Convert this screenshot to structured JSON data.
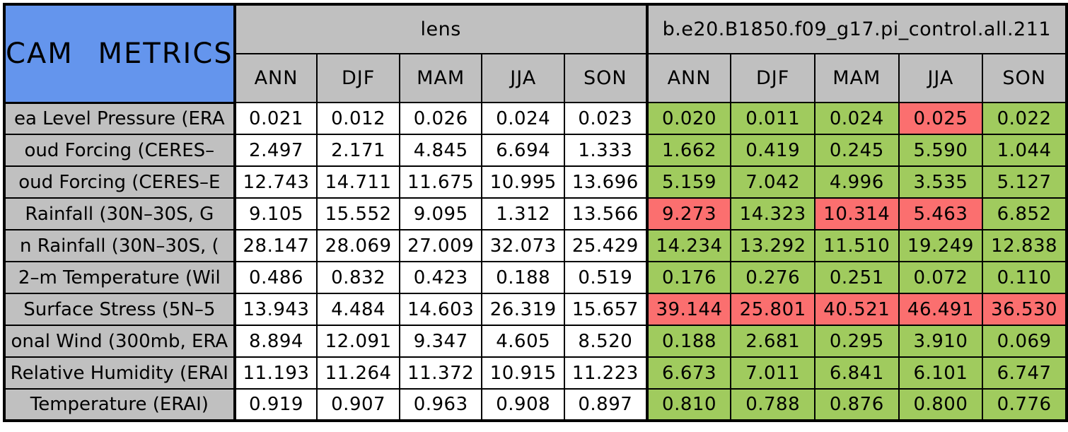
{
  "colors": {
    "blue": "#6495ED",
    "gray": "#C0C0C0",
    "green": "#A0CB5E",
    "red": "#FB6F6F",
    "white": "#FFFFFF",
    "border": "#000000",
    "text": "#000000"
  },
  "chart_data": {
    "type": "table",
    "title": "CAM METRICS",
    "groups": [
      {
        "key": "lens",
        "label": "lens",
        "columns": [
          "ANN",
          "DJF",
          "MAM",
          "JJA",
          "SON"
        ]
      },
      {
        "key": "control",
        "label": "b.e20.B1850.f09_g17.pi_control.all.211",
        "columns": [
          "ANN",
          "DJF",
          "MAM",
          "JJA",
          "SON"
        ]
      }
    ],
    "cell_color_legend": {
      "green": "control value highlighted green",
      "red": "control value highlighted red"
    },
    "rows": [
      {
        "label": "ea Level Pressure (ERA",
        "lens": [
          "0.021",
          "0.012",
          "0.026",
          "0.024",
          "0.023"
        ],
        "control": [
          "0.020",
          "0.011",
          "0.024",
          "0.025",
          "0.022"
        ],
        "control_cell_colors": [
          "green",
          "green",
          "green",
          "red",
          "green"
        ]
      },
      {
        "label": "oud Forcing (CERES–",
        "lens": [
          "2.497",
          "2.171",
          "4.845",
          "6.694",
          "1.333"
        ],
        "control": [
          "1.662",
          "0.419",
          "0.245",
          "5.590",
          "1.044"
        ],
        "control_cell_colors": [
          "green",
          "green",
          "green",
          "green",
          "green"
        ]
      },
      {
        "label": "oud Forcing (CERES–E",
        "lens": [
          "12.743",
          "14.711",
          "11.675",
          "10.995",
          "13.696"
        ],
        "control": [
          "5.159",
          "7.042",
          "4.996",
          "3.535",
          "5.127"
        ],
        "control_cell_colors": [
          "green",
          "green",
          "green",
          "green",
          "green"
        ]
      },
      {
        "label": "Rainfall (30N–30S, G",
        "lens": [
          "9.105",
          "15.552",
          "9.095",
          "1.312",
          "13.566"
        ],
        "control": [
          "9.273",
          "14.323",
          "10.314",
          "5.463",
          "6.852"
        ],
        "control_cell_colors": [
          "red",
          "green",
          "red",
          "red",
          "green"
        ]
      },
      {
        "label": "n Rainfall (30N–30S, (",
        "lens": [
          "28.147",
          "28.069",
          "27.009",
          "32.073",
          "25.429"
        ],
        "control": [
          "14.234",
          "13.292",
          "11.510",
          "19.249",
          "12.838"
        ],
        "control_cell_colors": [
          "green",
          "green",
          "green",
          "green",
          "green"
        ]
      },
      {
        "label": "2–m Temperature (Wil",
        "lens": [
          "0.486",
          "0.832",
          "0.423",
          "0.188",
          "0.519"
        ],
        "control": [
          "0.176",
          "0.276",
          "0.251",
          "0.072",
          "0.110"
        ],
        "control_cell_colors": [
          "green",
          "green",
          "green",
          "green",
          "green"
        ]
      },
      {
        "label": "Surface Stress (5N–5",
        "lens": [
          "13.943",
          "4.484",
          "14.603",
          "26.319",
          "15.657"
        ],
        "control": [
          "39.144",
          "25.801",
          "40.521",
          "46.491",
          "36.530"
        ],
        "control_cell_colors": [
          "red",
          "red",
          "red",
          "red",
          "red"
        ]
      },
      {
        "label": "onal Wind (300mb, ERA",
        "lens": [
          "8.894",
          "12.091",
          "9.347",
          "4.605",
          "8.520"
        ],
        "control": [
          "0.188",
          "2.681",
          "0.295",
          "3.910",
          "0.069"
        ],
        "control_cell_colors": [
          "green",
          "green",
          "green",
          "green",
          "green"
        ]
      },
      {
        "label": "Relative Humidity (ERAI",
        "lens": [
          "11.193",
          "11.264",
          "11.372",
          "10.915",
          "11.223"
        ],
        "control": [
          "6.673",
          "7.011",
          "6.841",
          "6.101",
          "6.747"
        ],
        "control_cell_colors": [
          "green",
          "green",
          "green",
          "green",
          "green"
        ]
      },
      {
        "label": "Temperature (ERAI)",
        "lens": [
          "0.919",
          "0.907",
          "0.963",
          "0.908",
          "0.897"
        ],
        "control": [
          "0.810",
          "0.788",
          "0.876",
          "0.800",
          "0.776"
        ],
        "control_cell_colors": [
          "green",
          "green",
          "green",
          "green",
          "green"
        ]
      }
    ]
  }
}
